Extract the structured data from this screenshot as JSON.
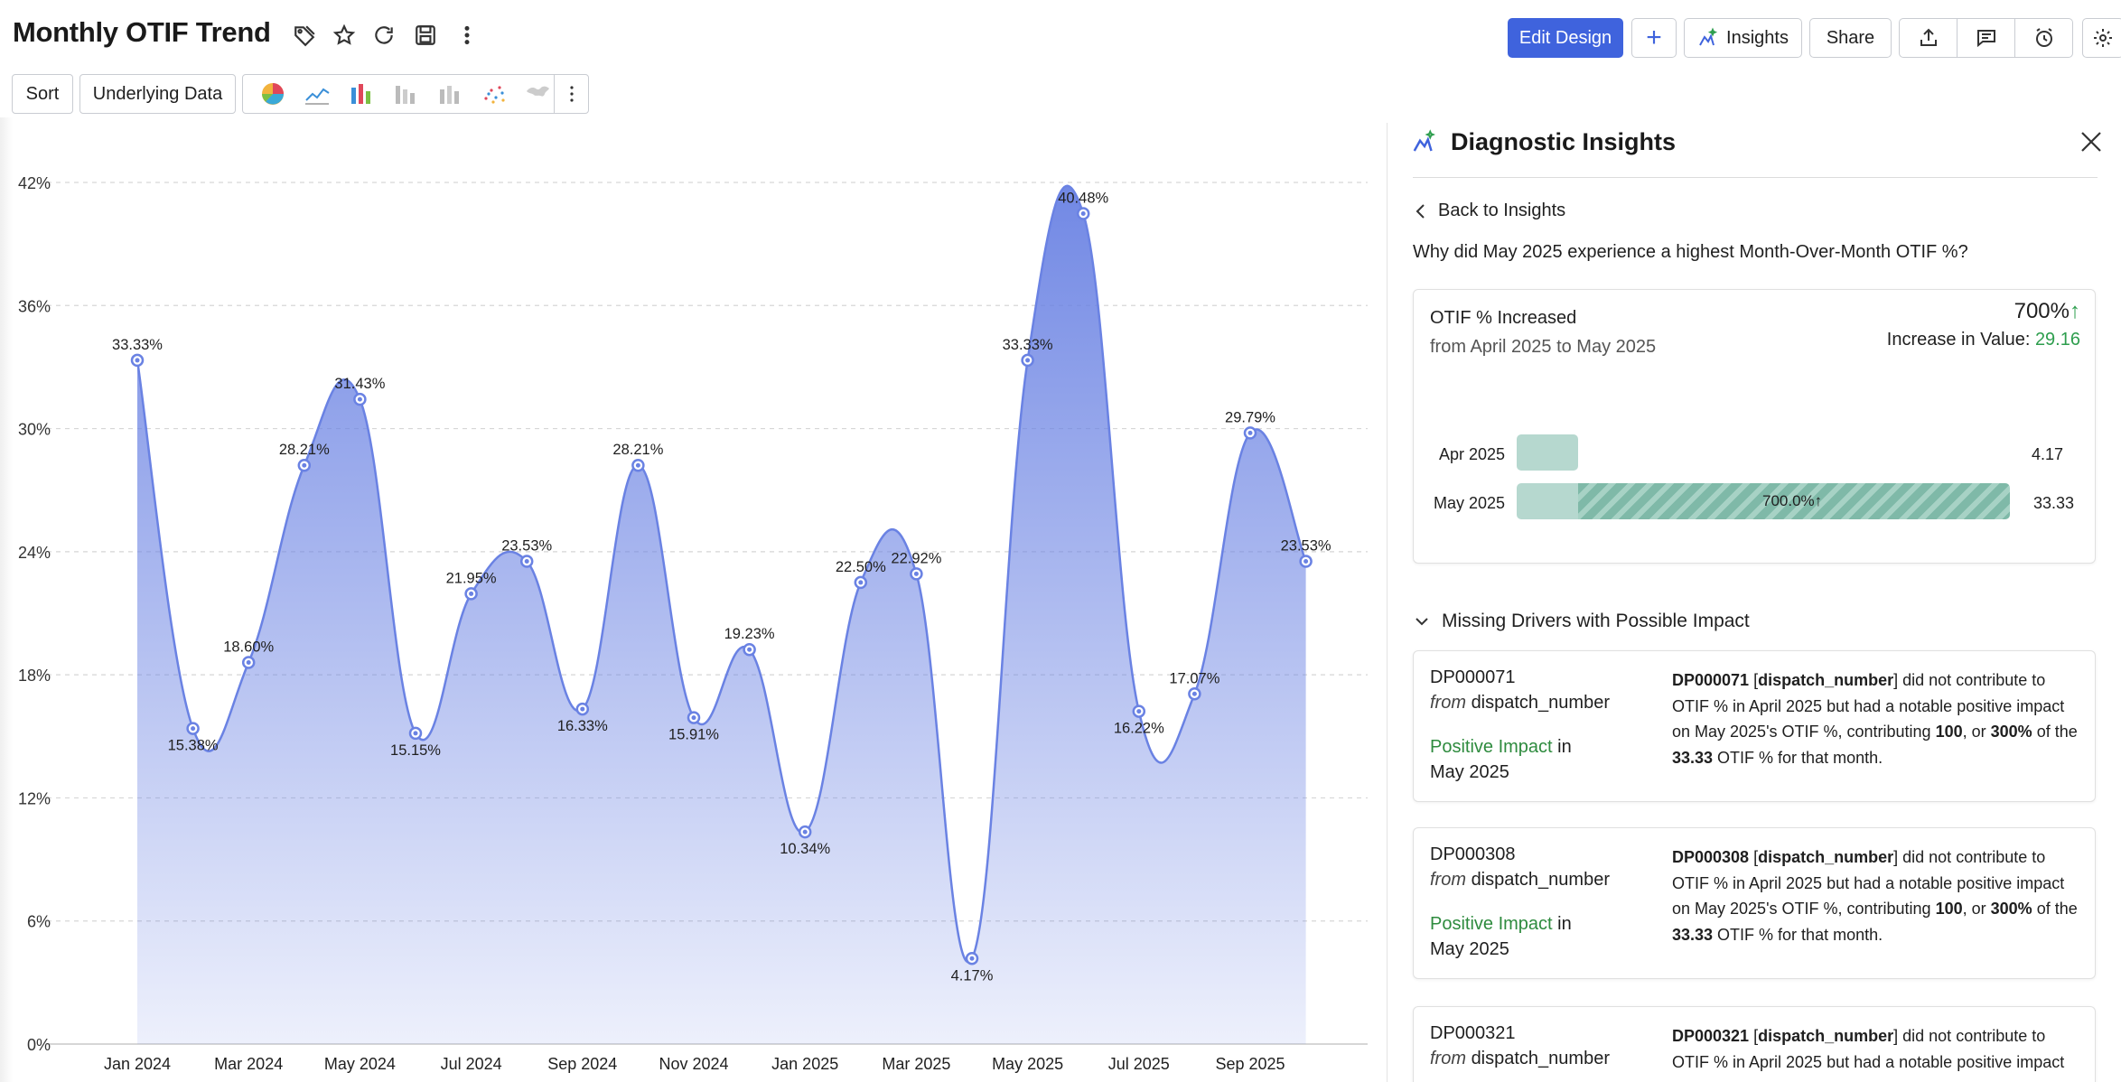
{
  "header": {
    "title": "Monthly OTIF Trend",
    "edit_design": "Edit Design",
    "add": "+",
    "insights": "Insights",
    "share": "Share"
  },
  "toolbar": {
    "sort": "Sort",
    "underlying_data": "Underlying Data"
  },
  "chart_data": {
    "type": "area",
    "x": [
      "Jan 2024",
      "Feb 2024",
      "Mar 2024",
      "Apr 2024",
      "May 2024",
      "Jun 2024",
      "Jul 2024",
      "Aug 2024",
      "Sep 2024",
      "Oct 2024",
      "Nov 2024",
      "Dec 2024",
      "Jan 2025",
      "Feb 2025",
      "Mar 2025",
      "Apr 2025",
      "May 2025",
      "Jun 2025",
      "Jul 2025",
      "Aug 2025",
      "Sep 2025",
      "Oct 2025"
    ],
    "values": [
      33.33,
      15.38,
      18.6,
      28.21,
      31.43,
      15.15,
      21.95,
      23.53,
      16.33,
      28.21,
      15.91,
      19.23,
      10.34,
      22.5,
      22.92,
      4.17,
      33.33,
      40.48,
      16.22,
      17.07,
      29.79,
      23.53
    ],
    "labels": [
      "33.33%",
      "15.38%",
      "18.60%",
      "28.21%",
      "31.43%",
      "15.15%",
      "21.95%",
      "23.53%",
      "16.33%",
      "28.21%",
      "15.91%",
      "19.23%",
      "10.34%",
      "22.50%",
      "22.92%",
      "4.17%",
      "33.33%",
      "40.48%",
      "16.22%",
      "17.07%",
      "29.79%",
      "23.53%"
    ],
    "x_tick_labels": [
      "Jan 2024",
      "Mar 2024",
      "May 2024",
      "Jul 2024",
      "Sep 2024",
      "Nov 2024",
      "Jan 2025",
      "Mar 2025",
      "May 2025",
      "Jul 2025",
      "Sep 2025"
    ],
    "y_ticks": [
      "0%",
      "6%",
      "12%",
      "18%",
      "24%",
      "30%",
      "36%",
      "42%"
    ],
    "ylim": [
      0,
      42
    ],
    "grid": true,
    "color": "#6a82e3"
  },
  "panel": {
    "title": "Diagnostic Insights",
    "back": "Back to Insights",
    "question": "Why did May 2025 experience a highest Month-Over-Month OTIF %?",
    "summary": {
      "label": "OTIF % Increased",
      "range": "from April 2025 to May 2025",
      "pct": "700%",
      "arrow": "↑",
      "increase_label": "Increase in Value: ",
      "increase_value": "29.16",
      "bars": [
        {
          "label": "Apr 2025",
          "value": "4.17",
          "num": 4.17
        },
        {
          "label": "May 2025",
          "value": "33.33",
          "num": 33.33
        }
      ],
      "bar_increase_label": "700.0%↑"
    },
    "section": "Missing Drivers with Possible Impact",
    "drivers": [
      {
        "id": "DP000071",
        "from": "from",
        "field": "dispatch_number",
        "impact": "Positive Impact",
        "in": "in",
        "month": "May 2025",
        "t1": "DP000071",
        "t2": "[",
        "t3": "dispatch_number",
        "t4": "] did not contribute to OTIF % in April 2025 but had a notable positive impact on May 2025's OTIF %, contributing ",
        "t5": "100",
        "t6": ", or ",
        "t7": "300%",
        "t8": " of the ",
        "t9": "33.33",
        "t10": " OTIF % for that month."
      },
      {
        "id": "DP000308",
        "from": "from",
        "field": "dispatch_number",
        "impact": "Positive Impact",
        "in": "in",
        "month": "May 2025",
        "t1": "DP000308",
        "t2": "[",
        "t3": "dispatch_number",
        "t4": "] did not contribute to OTIF % in April 2025 but had a notable positive impact on May 2025's OTIF %, contributing ",
        "t5": "100",
        "t6": ", or ",
        "t7": "300%",
        "t8": " of the ",
        "t9": "33.33",
        "t10": " OTIF % for that month."
      },
      {
        "id": "DP000321",
        "from": "from",
        "field": "dispatch_number",
        "t1": "DP000321",
        "t2": "[",
        "t3": "dispatch_number",
        "t4": "] did not contribute to OTIF % in April 2025 but had a notable positive impact"
      }
    ]
  }
}
